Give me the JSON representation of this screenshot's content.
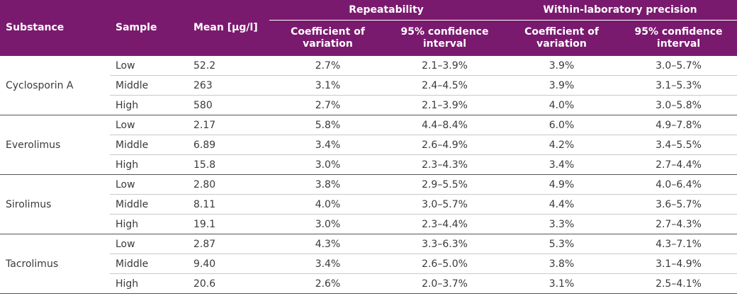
{
  "header": {
    "substance": "Substance",
    "sample": "Sample",
    "mean": "Mean [µg/l]",
    "repeatability": "Repeatability",
    "within_lab": "Within-laboratory precision",
    "cv": "Coefficient of variation",
    "ci": "95% confidence interval"
  },
  "groups": [
    {
      "substance": "Cyclosporin A",
      "rows": [
        {
          "sample": "Low",
          "mean": "52.2",
          "rep_cv": "2.7%",
          "rep_ci": "2.1–3.9%",
          "wl_cv": "3.9%",
          "wl_ci": "3.0–5.7%"
        },
        {
          "sample": "Middle",
          "mean": "263",
          "rep_cv": "3.1%",
          "rep_ci": "2.4–4.5%",
          "wl_cv": "3.9%",
          "wl_ci": "3.1–5.3%"
        },
        {
          "sample": "High",
          "mean": "580",
          "rep_cv": "2.7%",
          "rep_ci": "2.1–3.9%",
          "wl_cv": "4.0%",
          "wl_ci": "3.0–5.8%"
        }
      ]
    },
    {
      "substance": "Everolimus",
      "rows": [
        {
          "sample": "Low",
          "mean": "2.17",
          "rep_cv": "5.8%",
          "rep_ci": "4.4–8.4%",
          "wl_cv": "6.0%",
          "wl_ci": "4.9–7.8%"
        },
        {
          "sample": "Middle",
          "mean": "6.89",
          "rep_cv": "3.4%",
          "rep_ci": "2.6–4.9%",
          "wl_cv": "4.2%",
          "wl_ci": "3.4–5.5%"
        },
        {
          "sample": "High",
          "mean": "15.8",
          "rep_cv": "3.0%",
          "rep_ci": "2.3–4.3%",
          "wl_cv": "3.4%",
          "wl_ci": "2.7–4.4%"
        }
      ]
    },
    {
      "substance": "Sirolimus",
      "rows": [
        {
          "sample": "Low",
          "mean": "2.80",
          "rep_cv": "3.8%",
          "rep_ci": "2.9–5.5%",
          "wl_cv": "4.9%",
          "wl_ci": "4.0–6.4%"
        },
        {
          "sample": "Middle",
          "mean": "8.11",
          "rep_cv": "4.0%",
          "rep_ci": "3.0–5.7%",
          "wl_cv": "4.4%",
          "wl_ci": "3.6–5.7%"
        },
        {
          "sample": "High",
          "mean": "19.1",
          "rep_cv": "3.0%",
          "rep_ci": "2.3–4.4%",
          "wl_cv": "3.3%",
          "wl_ci": "2.7–4.3%"
        }
      ]
    },
    {
      "substance": "Tacrolimus",
      "rows": [
        {
          "sample": "Low",
          "mean": "2.87",
          "rep_cv": "4.3%",
          "rep_ci": "3.3–6.3%",
          "wl_cv": "5.3%",
          "wl_ci": "4.3–7.1%"
        },
        {
          "sample": "Middle",
          "mean": "9.40",
          "rep_cv": "3.4%",
          "rep_ci": "2.6–5.0%",
          "wl_cv": "3.8%",
          "wl_ci": "3.1–4.9%"
        },
        {
          "sample": "High",
          "mean": "20.6",
          "rep_cv": "2.6%",
          "rep_ci": "2.0–3.7%",
          "wl_cv": "3.1%",
          "wl_ci": "2.5–4.1%"
        }
      ]
    }
  ]
}
